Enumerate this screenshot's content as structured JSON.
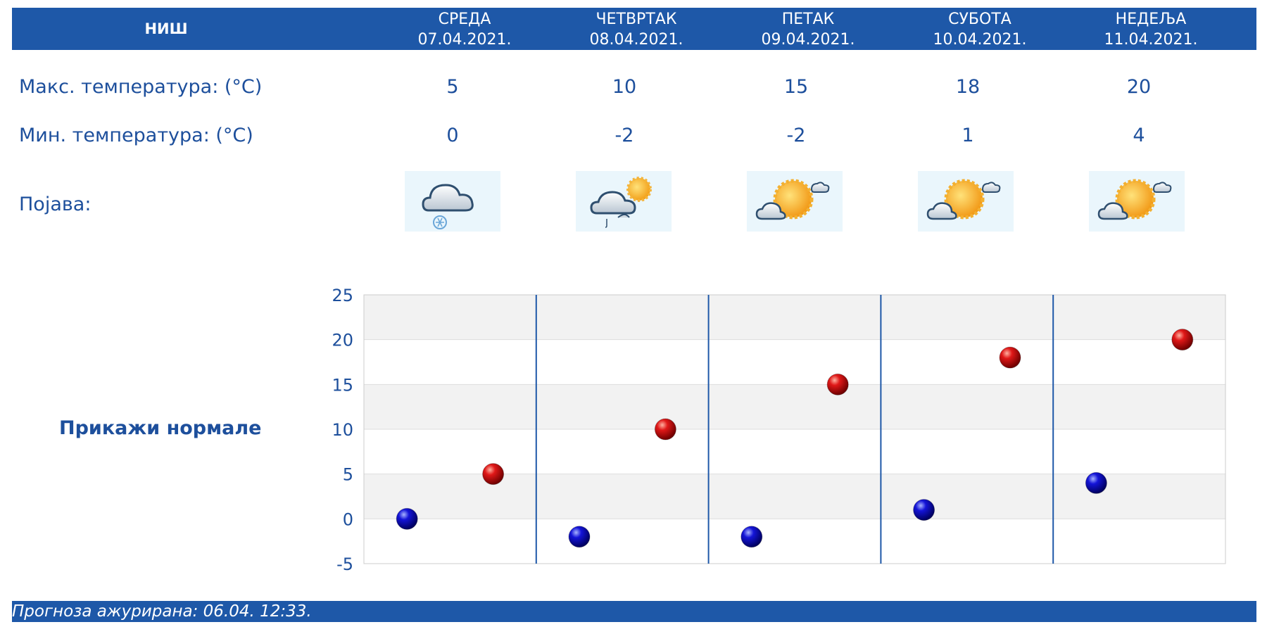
{
  "header": {
    "city": "НИШ"
  },
  "days": [
    {
      "name": "СРЕДА",
      "date": "07.04.2021.",
      "max": "5",
      "min": "0",
      "icon": "cloud-snow-icon"
    },
    {
      "name": "ЧЕТВРТАК",
      "date": "08.04.2021.",
      "max": "10",
      "min": "-2",
      "icon": "cloud-sun-rain-icon"
    },
    {
      "name": "ПЕТАК",
      "date": "09.04.2021.",
      "max": "15",
      "min": "-2",
      "icon": "sun-clouds-icon"
    },
    {
      "name": "СУБОТА",
      "date": "10.04.2021.",
      "max": "18",
      "min": "1",
      "icon": "sun-clouds-icon"
    },
    {
      "name": "НЕДЕЉА",
      "date": "11.04.2021.",
      "max": "20",
      "min": "4",
      "icon": "sun-clouds-icon"
    }
  ],
  "labels": {
    "max_temp": "Макс. температура: (°C)",
    "min_temp": "Мин. температура: (°C)",
    "phenomenon": "Појава:"
  },
  "normals_link": "Прикажи нормале",
  "footer": {
    "updated": "Прогноза ажурирана:  06.04.  12:33."
  },
  "colors": {
    "bar": "#1e58a8",
    "text": "#1d4f9c",
    "max_marker": "#d01010",
    "min_marker": "#1010c8"
  },
  "chart_data": {
    "type": "scatter",
    "categories": [
      "07.04.2021.",
      "08.04.2021.",
      "09.04.2021.",
      "10.04.2021.",
      "11.04.2021."
    ],
    "series": [
      {
        "values": [
          0,
          -2,
          -2,
          1,
          4
        ],
        "color": "#1010c8"
      },
      {
        "values": [
          5,
          10,
          15,
          18,
          20
        ],
        "color": "#d01010"
      }
    ],
    "yticks": [
      25,
      20,
      15,
      10,
      5,
      0,
      -5
    ],
    "ylim": [
      -5,
      25
    ],
    "grid": true
  }
}
